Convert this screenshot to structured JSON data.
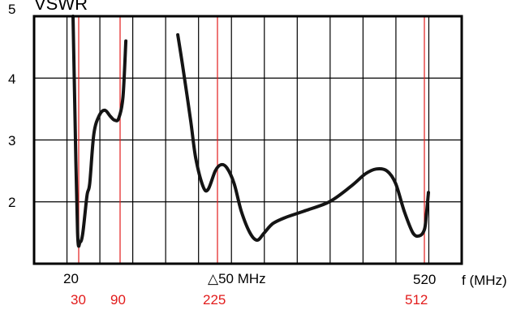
{
  "chart_data": {
    "type": "line",
    "title": "VSWR",
    "xlabel": "f (MHz)",
    "ylabel": "",
    "ylim": [
      1,
      5
    ],
    "y_ticks": [
      "2",
      "3",
      "4",
      "5"
    ],
    "x_tick_labels_black": [
      "20",
      "△50 MHz",
      "520"
    ],
    "x_tick_labels_red": [
      "30",
      "90",
      "225",
      "512"
    ],
    "marker_lines_mhz": [
      30,
      90,
      225,
      512
    ],
    "grid": true,
    "series": [
      {
        "segments": [
          [
            [
              20,
              5.0
            ],
            [
              23,
              3.6
            ],
            [
              28,
              1.5
            ],
            [
              32,
              1.35
            ],
            [
              36,
              1.5
            ],
            [
              42,
              2.1
            ],
            [
              46,
              2.3
            ],
            [
              52,
              3.1
            ],
            [
              60,
              3.4
            ],
            [
              68,
              3.48
            ],
            [
              76,
              3.38
            ],
            [
              82,
              3.32
            ],
            [
              88,
              3.35
            ],
            [
              94,
              3.7
            ],
            [
              98,
              4.6
            ]
          ],
          [
            [
              170,
              4.7
            ],
            [
              178,
              4.1
            ],
            [
              188,
              3.3
            ],
            [
              195,
              2.7
            ],
            [
              205,
              2.25
            ],
            [
              212,
              2.2
            ],
            [
              222,
              2.5
            ],
            [
              230,
              2.6
            ],
            [
              238,
              2.55
            ],
            [
              248,
              2.3
            ],
            [
              258,
              1.85
            ],
            [
              270,
              1.5
            ],
            [
              280,
              1.38
            ],
            [
              290,
              1.5
            ],
            [
              302,
              1.65
            ],
            [
              320,
              1.75
            ],
            [
              345,
              1.85
            ],
            [
              380,
              2.0
            ],
            [
              410,
              2.25
            ],
            [
              430,
              2.45
            ],
            [
              445,
              2.53
            ],
            [
              460,
              2.5
            ],
            [
              472,
              2.3
            ],
            [
              484,
              1.85
            ],
            [
              496,
              1.5
            ],
            [
              505,
              1.45
            ],
            [
              512,
              1.55
            ],
            [
              520,
              1.8
            ],
            [
              528,
              2.15
            ]
          ]
        ]
      }
    ],
    "colors": {
      "curve": "#141414",
      "grid": "#000000",
      "marker": "#e21b1b"
    }
  }
}
